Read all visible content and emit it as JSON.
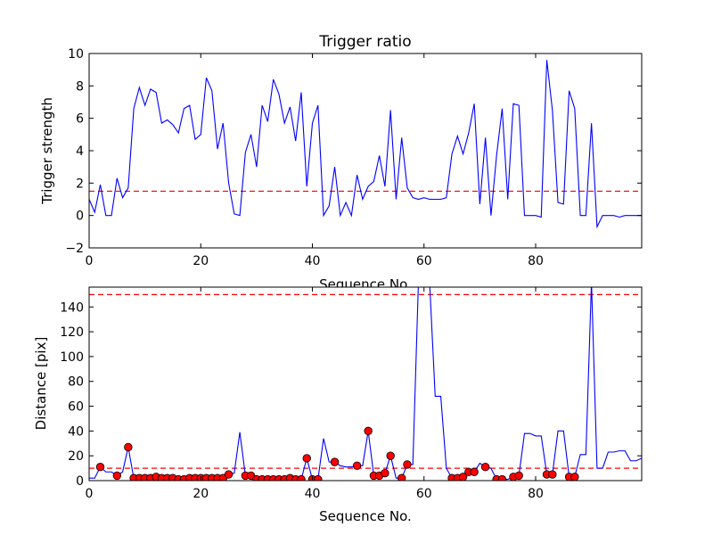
{
  "chart_data": [
    {
      "type": "line",
      "title": "Trigger ratio",
      "xlabel": "Sequence No.",
      "ylabel": "Trigger strength",
      "xlim": [
        0,
        99
      ],
      "ylim": [
        -2,
        10
      ],
      "xticks": [
        0,
        20,
        40,
        60,
        80
      ],
      "yticks": [
        -2,
        0,
        2,
        4,
        6,
        8,
        10
      ],
      "threshold": 1.5,
      "colors": {
        "line": "#0000ff",
        "threshold": "#ff0000"
      },
      "series": [
        {
          "x": [
            0,
            1,
            2,
            3,
            4,
            5,
            6,
            7,
            8,
            9,
            10,
            11,
            12,
            13,
            14,
            15,
            16,
            17,
            18,
            19,
            20,
            21,
            22,
            23,
            24,
            25,
            26,
            27,
            28,
            29,
            30,
            31,
            32,
            33,
            34,
            35,
            36,
            37,
            38,
            39,
            40,
            41,
            42,
            43,
            44,
            45,
            46,
            47,
            48,
            49,
            50,
            51,
            52,
            53,
            54,
            55,
            56,
            57,
            58,
            59,
            60,
            61,
            62,
            63,
            64,
            65,
            66,
            67,
            68,
            69,
            70,
            71,
            72,
            73,
            74,
            75,
            76,
            77,
            78,
            79,
            80,
            81,
            82,
            83,
            84,
            85,
            86,
            87,
            88,
            89,
            90,
            91,
            92,
            93,
            94,
            95,
            96,
            97,
            98,
            99
          ],
          "y": [
            1.0,
            0.2,
            1.9,
            0.0,
            0.0,
            2.3,
            1.1,
            1.7,
            6.6,
            7.9,
            6.8,
            7.8,
            7.6,
            5.7,
            5.9,
            5.6,
            5.1,
            6.6,
            6.8,
            4.7,
            5.0,
            8.5,
            7.7,
            4.1,
            5.7,
            2.0,
            0.1,
            0.0,
            3.9,
            5.0,
            3.0,
            6.8,
            5.8,
            8.4,
            7.5,
            5.7,
            6.7,
            4.6,
            7.6,
            1.8,
            5.7,
            6.8,
            0.0,
            0.6,
            3.0,
            0.0,
            0.8,
            0.0,
            2.5,
            1.0,
            1.8,
            2.1,
            3.7,
            1.8,
            6.5,
            1.0,
            4.8,
            1.7,
            1.1,
            1.0,
            1.1,
            1.0,
            1.0,
            1.0,
            1.1,
            3.8,
            4.9,
            3.8,
            5.1,
            6.9,
            0.7,
            4.8,
            0.0,
            3.7,
            6.6,
            1.0,
            6.9,
            6.8,
            0.0,
            0.0,
            0.0,
            -0.1,
            9.6,
            6.5,
            0.8,
            0.7,
            7.7,
            6.6,
            0.0,
            0.0,
            5.7,
            -0.7,
            0.0,
            0.0,
            0.0,
            -0.1,
            0.0,
            0.0,
            0.0,
            0.0
          ]
        }
      ]
    },
    {
      "type": "line",
      "xlabel": "Sequence No.",
      "ylabel": "Distance [pix]",
      "xlim": [
        0,
        99
      ],
      "ylim": [
        0,
        156
      ],
      "xticks": [
        0,
        20,
        40,
        60,
        80
      ],
      "yticks": [
        0,
        20,
        40,
        60,
        80,
        100,
        120,
        140
      ],
      "thresholds": [
        10,
        150
      ],
      "colors": {
        "line": "#0000ff",
        "threshold": "#ff0000",
        "marker": "#ff0000"
      },
      "series": [
        {
          "x": [
            0,
            1,
            2,
            3,
            4,
            5,
            6,
            7,
            8,
            9,
            10,
            11,
            12,
            13,
            14,
            15,
            16,
            17,
            18,
            19,
            20,
            21,
            22,
            23,
            24,
            25,
            26,
            27,
            28,
            29,
            30,
            31,
            32,
            33,
            34,
            35,
            36,
            37,
            38,
            39,
            40,
            41,
            42,
            43,
            44,
            45,
            46,
            47,
            48,
            49,
            50,
            51,
            52,
            53,
            54,
            55,
            56,
            57,
            58,
            59,
            60,
            61,
            62,
            63,
            64,
            65,
            66,
            67,
            68,
            69,
            70,
            71,
            72,
            73,
            74,
            75,
            76,
            77,
            78,
            79,
            80,
            81,
            82,
            83,
            84,
            85,
            86,
            87,
            88,
            89,
            90,
            91,
            92,
            93,
            94,
            95,
            96,
            97,
            98,
            99
          ],
          "y": [
            2,
            2,
            11,
            7,
            7,
            4,
            7,
            27,
            2,
            2,
            2,
            2,
            3,
            2,
            2,
            2,
            1,
            1,
            2,
            2,
            2,
            2,
            2,
            2,
            2,
            5,
            6,
            39,
            4,
            4,
            1,
            1,
            1,
            1,
            1,
            1,
            2,
            1,
            1,
            18,
            1,
            1,
            34,
            15,
            15,
            12,
            11,
            11,
            12,
            12,
            40,
            4,
            4,
            6,
            20,
            2,
            2,
            13,
            13,
            160,
            160,
            160,
            68,
            68,
            10,
            2,
            2,
            3,
            7,
            7,
            14,
            11,
            10,
            1,
            1,
            1,
            3,
            4,
            38,
            38,
            36,
            36,
            5,
            5,
            40,
            40,
            3,
            3,
            21,
            21,
            160,
            10,
            10,
            23,
            23,
            24,
            24,
            16,
            16,
            18
          ],
          "marked_x": [
            2,
            5,
            7,
            8,
            9,
            10,
            11,
            12,
            13,
            14,
            15,
            16,
            17,
            18,
            19,
            20,
            21,
            22,
            23,
            24,
            25,
            28,
            29,
            30,
            31,
            32,
            33,
            34,
            35,
            36,
            37,
            38,
            39,
            40,
            41,
            44,
            48,
            50,
            51,
            52,
            53,
            54,
            56,
            57,
            65,
            66,
            67,
            68,
            69,
            71,
            73,
            74,
            76,
            77,
            82,
            83,
            86,
            87
          ]
        }
      ]
    }
  ]
}
